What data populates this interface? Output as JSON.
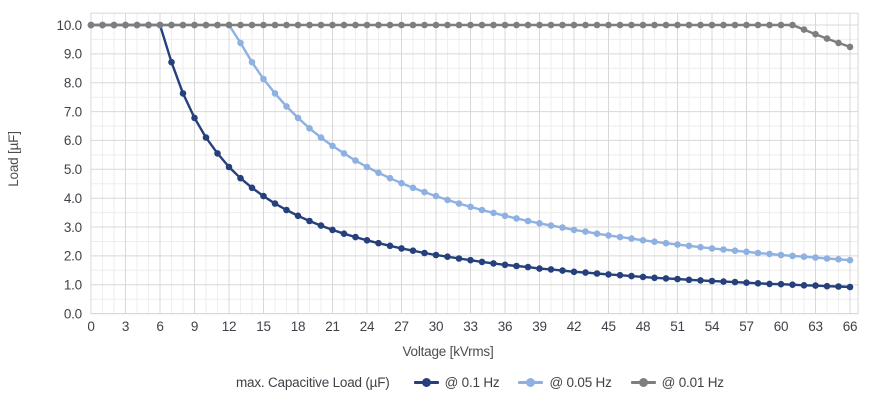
{
  "chart_data": {
    "type": "line",
    "title": "",
    "xlabel": "Voltage [kVrms]",
    "ylabel": "Load [µF]",
    "legend_title": "max. Capacitive Load (µF)",
    "legend_position": "bottom",
    "grid": true,
    "xlim": [
      0,
      66.7
    ],
    "ylim": [
      0,
      10.41
    ],
    "xticks": [
      0,
      3,
      6,
      9,
      12,
      15,
      18,
      21,
      24,
      27,
      30,
      33,
      36,
      39,
      42,
      45,
      48,
      51,
      54,
      57,
      60,
      63,
      66
    ],
    "ytick_labels": [
      "0.0",
      "1.0",
      "2.0",
      "3.0",
      "4.0",
      "5.0",
      "6.0",
      "7.0",
      "8.0",
      "9.0",
      "10.0"
    ],
    "x_minor_step": 1,
    "y_minor_step": 0.5,
    "x": [
      0,
      1,
      2,
      3,
      4,
      5,
      6,
      7,
      8,
      9,
      10,
      11,
      12,
      13,
      14,
      15,
      16,
      17,
      18,
      19,
      20,
      21,
      22,
      23,
      24,
      25,
      26,
      27,
      28,
      29,
      30,
      31,
      32,
      33,
      34,
      35,
      36,
      37,
      38,
      39,
      40,
      41,
      42,
      43,
      44,
      45,
      46,
      47,
      48,
      49,
      50,
      51,
      52,
      53,
      54,
      55,
      56,
      57,
      58,
      59,
      60,
      61,
      62,
      63,
      64,
      65,
      66
    ],
    "series": [
      {
        "name": "@ 0.1 Hz",
        "color": "#26407c",
        "values": [
          10,
          10,
          10,
          10,
          10,
          10,
          10,
          8.71,
          7.63,
          6.78,
          6.1,
          5.55,
          5.08,
          4.69,
          4.36,
          4.07,
          3.81,
          3.59,
          3.39,
          3.21,
          3.05,
          2.9,
          2.77,
          2.65,
          2.54,
          2.44,
          2.35,
          2.26,
          2.18,
          2.1,
          2.03,
          1.97,
          1.91,
          1.85,
          1.79,
          1.74,
          1.69,
          1.65,
          1.61,
          1.56,
          1.53,
          1.49,
          1.45,
          1.42,
          1.39,
          1.36,
          1.33,
          1.3,
          1.27,
          1.24,
          1.22,
          1.2,
          1.17,
          1.15,
          1.13,
          1.11,
          1.09,
          1.07,
          1.05,
          1.03,
          1.02,
          1.0,
          0.98,
          0.97,
          0.95,
          0.94,
          0.92
        ]
      },
      {
        "name": "@ 0.05 Hz",
        "color": "#8fb1e1",
        "values": [
          10,
          10,
          10,
          10,
          10,
          10,
          10,
          10,
          10,
          10,
          10,
          10,
          10,
          9.38,
          8.71,
          8.13,
          7.63,
          7.18,
          6.78,
          6.42,
          6.1,
          5.81,
          5.55,
          5.3,
          5.08,
          4.88,
          4.69,
          4.52,
          4.36,
          4.21,
          4.07,
          3.94,
          3.81,
          3.7,
          3.59,
          3.49,
          3.39,
          3.3,
          3.21,
          3.13,
          3.05,
          2.98,
          2.9,
          2.84,
          2.77,
          2.71,
          2.65,
          2.6,
          2.54,
          2.49,
          2.44,
          2.39,
          2.35,
          2.3,
          2.26,
          2.22,
          2.18,
          2.14,
          2.1,
          2.07,
          2.03,
          2.0,
          1.97,
          1.94,
          1.91,
          1.88,
          1.85
        ]
      },
      {
        "name": "@ 0.01 Hz",
        "color": "#7e7e7e",
        "values": [
          10,
          10,
          10,
          10,
          10,
          10,
          10,
          10,
          10,
          10,
          10,
          10,
          10,
          10,
          10,
          10,
          10,
          10,
          10,
          10,
          10,
          10,
          10,
          10,
          10,
          10,
          10,
          10,
          10,
          10,
          10,
          10,
          10,
          10,
          10,
          10,
          10,
          10,
          10,
          10,
          10,
          10,
          10,
          10,
          10,
          10,
          10,
          10,
          10,
          10,
          10,
          10,
          10,
          10,
          10,
          10,
          10,
          10,
          10,
          10,
          10,
          10,
          9.84,
          9.68,
          9.53,
          9.38,
          9.24
        ]
      }
    ]
  },
  "colors": {
    "background": "#ffffff",
    "grid_minor": "#eeeeee",
    "grid_major": "#d8d8d8",
    "plot_border": "#d8d8d8",
    "tick_text": "#3e4248",
    "axis_title_text": "#4a4d52"
  }
}
